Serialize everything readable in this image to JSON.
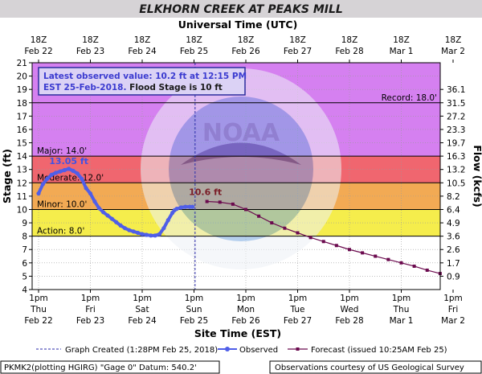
{
  "title": "ELKHORN CREEK AT PEAKS MILL",
  "top_axis_title": "Universal Time (UTC)",
  "bottom_axis_title": "Site Time (EST)",
  "left_axis_title": "Stage (ft)",
  "right_axis_title": "Flow (kcfs)",
  "info_box": {
    "line1": "Latest observed value: 10.2 ft at 12:15 PM",
    "line2_a": "EST 25-Feb-2018.",
    "line2_b": " Flood Stage is 10 ft"
  },
  "footer": {
    "left": "PKMK2(plotting HGIRG) \"Gage 0\" Datum: 540.2'",
    "right": "Observations courtesy of US Geological Survey"
  },
  "legend": {
    "graph_created": "Graph Created (1:28PM Feb 25, 2018)",
    "observed": "Observed",
    "forecast": "Forecast (issued 10:25AM Feb 25)"
  },
  "colors": {
    "title_bg": "#d6d3d6",
    "plot_bg": "#ffffff",
    "record_band": "#d580f0",
    "major_band": "#f0666f",
    "moderate_band": "#f2aa54",
    "minor_band": "#f5ed4c",
    "observed": "#4f5ee8",
    "forecast": "#6b0a4e",
    "peak_label": "#3f52e6",
    "forecast_label": "#7a1e28",
    "info_text": "#3b3bd0",
    "info_bg": "#dbd2f5"
  },
  "chart_data": {
    "type": "line",
    "x_unit": "hours since 1pm EST Feb 22",
    "ylim": [
      4,
      21
    ],
    "xlim": [
      0,
      168
    ],
    "y_ticks": [
      4,
      5,
      6,
      7,
      8,
      9,
      10,
      11,
      12,
      13,
      14,
      15,
      16,
      17,
      18,
      19,
      20,
      21
    ],
    "flow_ticks": [
      {
        "stage": 5,
        "label": "0.9"
      },
      {
        "stage": 6,
        "label": "1.7"
      },
      {
        "stage": 7,
        "label": "2.6"
      },
      {
        "stage": 8,
        "label": "3.6"
      },
      {
        "stage": 9,
        "label": "4.9"
      },
      {
        "stage": 10,
        "label": "6.4"
      },
      {
        "stage": 11,
        "label": "8.2"
      },
      {
        "stage": 12,
        "label": "10.5"
      },
      {
        "stage": 13,
        "label": "13.2"
      },
      {
        "stage": 14,
        "label": "16.3"
      },
      {
        "stage": 15,
        "label": "19.7"
      },
      {
        "stage": 16,
        "label": "23.3"
      },
      {
        "stage": 17,
        "label": "27.2"
      },
      {
        "stage": 18,
        "label": "31.5"
      },
      {
        "stage": 19,
        "label": "36.1"
      }
    ],
    "top_ticks": [
      {
        "x": 0,
        "l1": "18Z",
        "l2": "Feb 22"
      },
      {
        "x": 24,
        "l1": "18Z",
        "l2": "Feb 23"
      },
      {
        "x": 48,
        "l1": "18Z",
        "l2": "Feb 24"
      },
      {
        "x": 72,
        "l1": "18Z",
        "l2": "Feb 25"
      },
      {
        "x": 96,
        "l1": "18Z",
        "l2": "Feb 26"
      },
      {
        "x": 120,
        "l1": "18Z",
        "l2": "Feb 27"
      },
      {
        "x": 144,
        "l1": "18Z",
        "l2": "Feb 28"
      },
      {
        "x": 168,
        "l1": "18Z",
        "l2": "Mar 1"
      },
      {
        "x": 192,
        "l1": "18Z",
        "l2": "Mar 2"
      }
    ],
    "bottom_ticks": [
      {
        "x": 0,
        "l1": "1pm",
        "l2": "Thu",
        "l3": "Feb 22"
      },
      {
        "x": 24,
        "l1": "1pm",
        "l2": "Fri",
        "l3": "Feb 23"
      },
      {
        "x": 48,
        "l1": "1pm",
        "l2": "Sat",
        "l3": "Feb 24"
      },
      {
        "x": 72,
        "l1": "1pm",
        "l2": "Sun",
        "l3": "Feb 25"
      },
      {
        "x": 96,
        "l1": "1pm",
        "l2": "Mon",
        "l3": "Feb 26"
      },
      {
        "x": 120,
        "l1": "1pm",
        "l2": "Tue",
        "l3": "Feb 27"
      },
      {
        "x": 144,
        "l1": "1pm",
        "l2": "Wed",
        "l3": "Feb 28"
      },
      {
        "x": 168,
        "l1": "1pm",
        "l2": "Thu",
        "l3": "Mar 1"
      },
      {
        "x": 192,
        "l1": "1pm",
        "l2": "Fri",
        "l3": "Mar 2"
      }
    ],
    "thresholds": [
      {
        "name": "Record",
        "label": "Record: 18.0'",
        "value": 18.0
      },
      {
        "name": "Major",
        "label": "Major: 14.0'",
        "value": 14.0
      },
      {
        "name": "Moderate",
        "label": "Moderate: 12.0'",
        "value": 12.0
      },
      {
        "name": "Minor",
        "label": "Minor: 10.0'",
        "value": 10.0
      },
      {
        "name": "Action",
        "label": "Action: 8.0'",
        "value": 8.0
      }
    ],
    "graph_created_x": 72.5,
    "series": [
      {
        "name": "Observed",
        "x": [
          0,
          2,
          4,
          6,
          8,
          10,
          12,
          14,
          16,
          18,
          20,
          22,
          24,
          26,
          28,
          30,
          32,
          34,
          36,
          38,
          40,
          42,
          44,
          46,
          48,
          50,
          52,
          54,
          56,
          58,
          60,
          62,
          63,
          64,
          66,
          68,
          70,
          71.3
        ],
        "y": [
          11.2,
          11.9,
          12.3,
          12.6,
          12.75,
          12.85,
          12.95,
          13.05,
          12.9,
          12.7,
          12.3,
          11.6,
          11.2,
          10.6,
          10.1,
          9.8,
          9.55,
          9.3,
          9.05,
          8.8,
          8.6,
          8.45,
          8.35,
          8.25,
          8.15,
          8.1,
          8.05,
          8.05,
          8.15,
          8.6,
          9.2,
          9.75,
          9.95,
          10.05,
          10.15,
          10.2,
          10.2,
          10.2
        ]
      },
      {
        "name": "Forecast",
        "x": [
          78,
          84,
          90,
          96,
          102,
          108,
          114,
          120,
          126,
          132,
          138,
          144,
          150,
          156,
          162,
          168,
          174,
          180,
          186
        ],
        "y": [
          10.6,
          10.55,
          10.4,
          10.0,
          9.5,
          9.0,
          8.6,
          8.25,
          7.9,
          7.6,
          7.3,
          7.0,
          6.75,
          6.5,
          6.25,
          6.0,
          5.75,
          5.45,
          5.2
        ]
      }
    ],
    "peak_label": "13.05 ft",
    "peak": {
      "x": 14,
      "y": 13.05
    },
    "forecast_peak_label": "10.6 ft",
    "forecast_peak": {
      "x": 78,
      "y": 10.6
    }
  }
}
